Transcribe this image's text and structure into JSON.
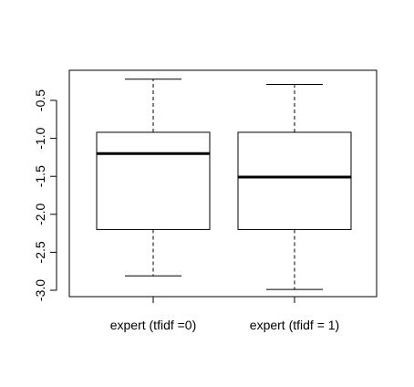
{
  "chart_data": {
    "type": "boxplot",
    "title": "",
    "xlabel": "",
    "ylabel": "",
    "ylim": [
      -3.0,
      -0.3
    ],
    "yticks": [
      -3.0,
      -2.5,
      -2.0,
      -1.5,
      -1.0,
      -0.5
    ],
    "ytick_labels": [
      "-3.0",
      "-2.5",
      "-2.0",
      "-1.5",
      "-1.0",
      "-0.5"
    ],
    "categories": [
      "expert (tfidf =0)",
      "expert (tfidf = 1)"
    ],
    "boxes": [
      {
        "category": "expert (tfidf =0)",
        "whisker_low": -2.81,
        "q1": -2.2,
        "median": -1.2,
        "q3": -0.92,
        "whisker_high": -0.22
      },
      {
        "category": "expert (tfidf = 1)",
        "whisker_low": -2.99,
        "q1": -2.2,
        "median": -1.51,
        "q3": -0.92,
        "whisker_high": -0.29
      }
    ],
    "grid": false,
    "legend": "none",
    "colors": {
      "box_fill": "#ffffff",
      "stroke": "#000000"
    }
  }
}
